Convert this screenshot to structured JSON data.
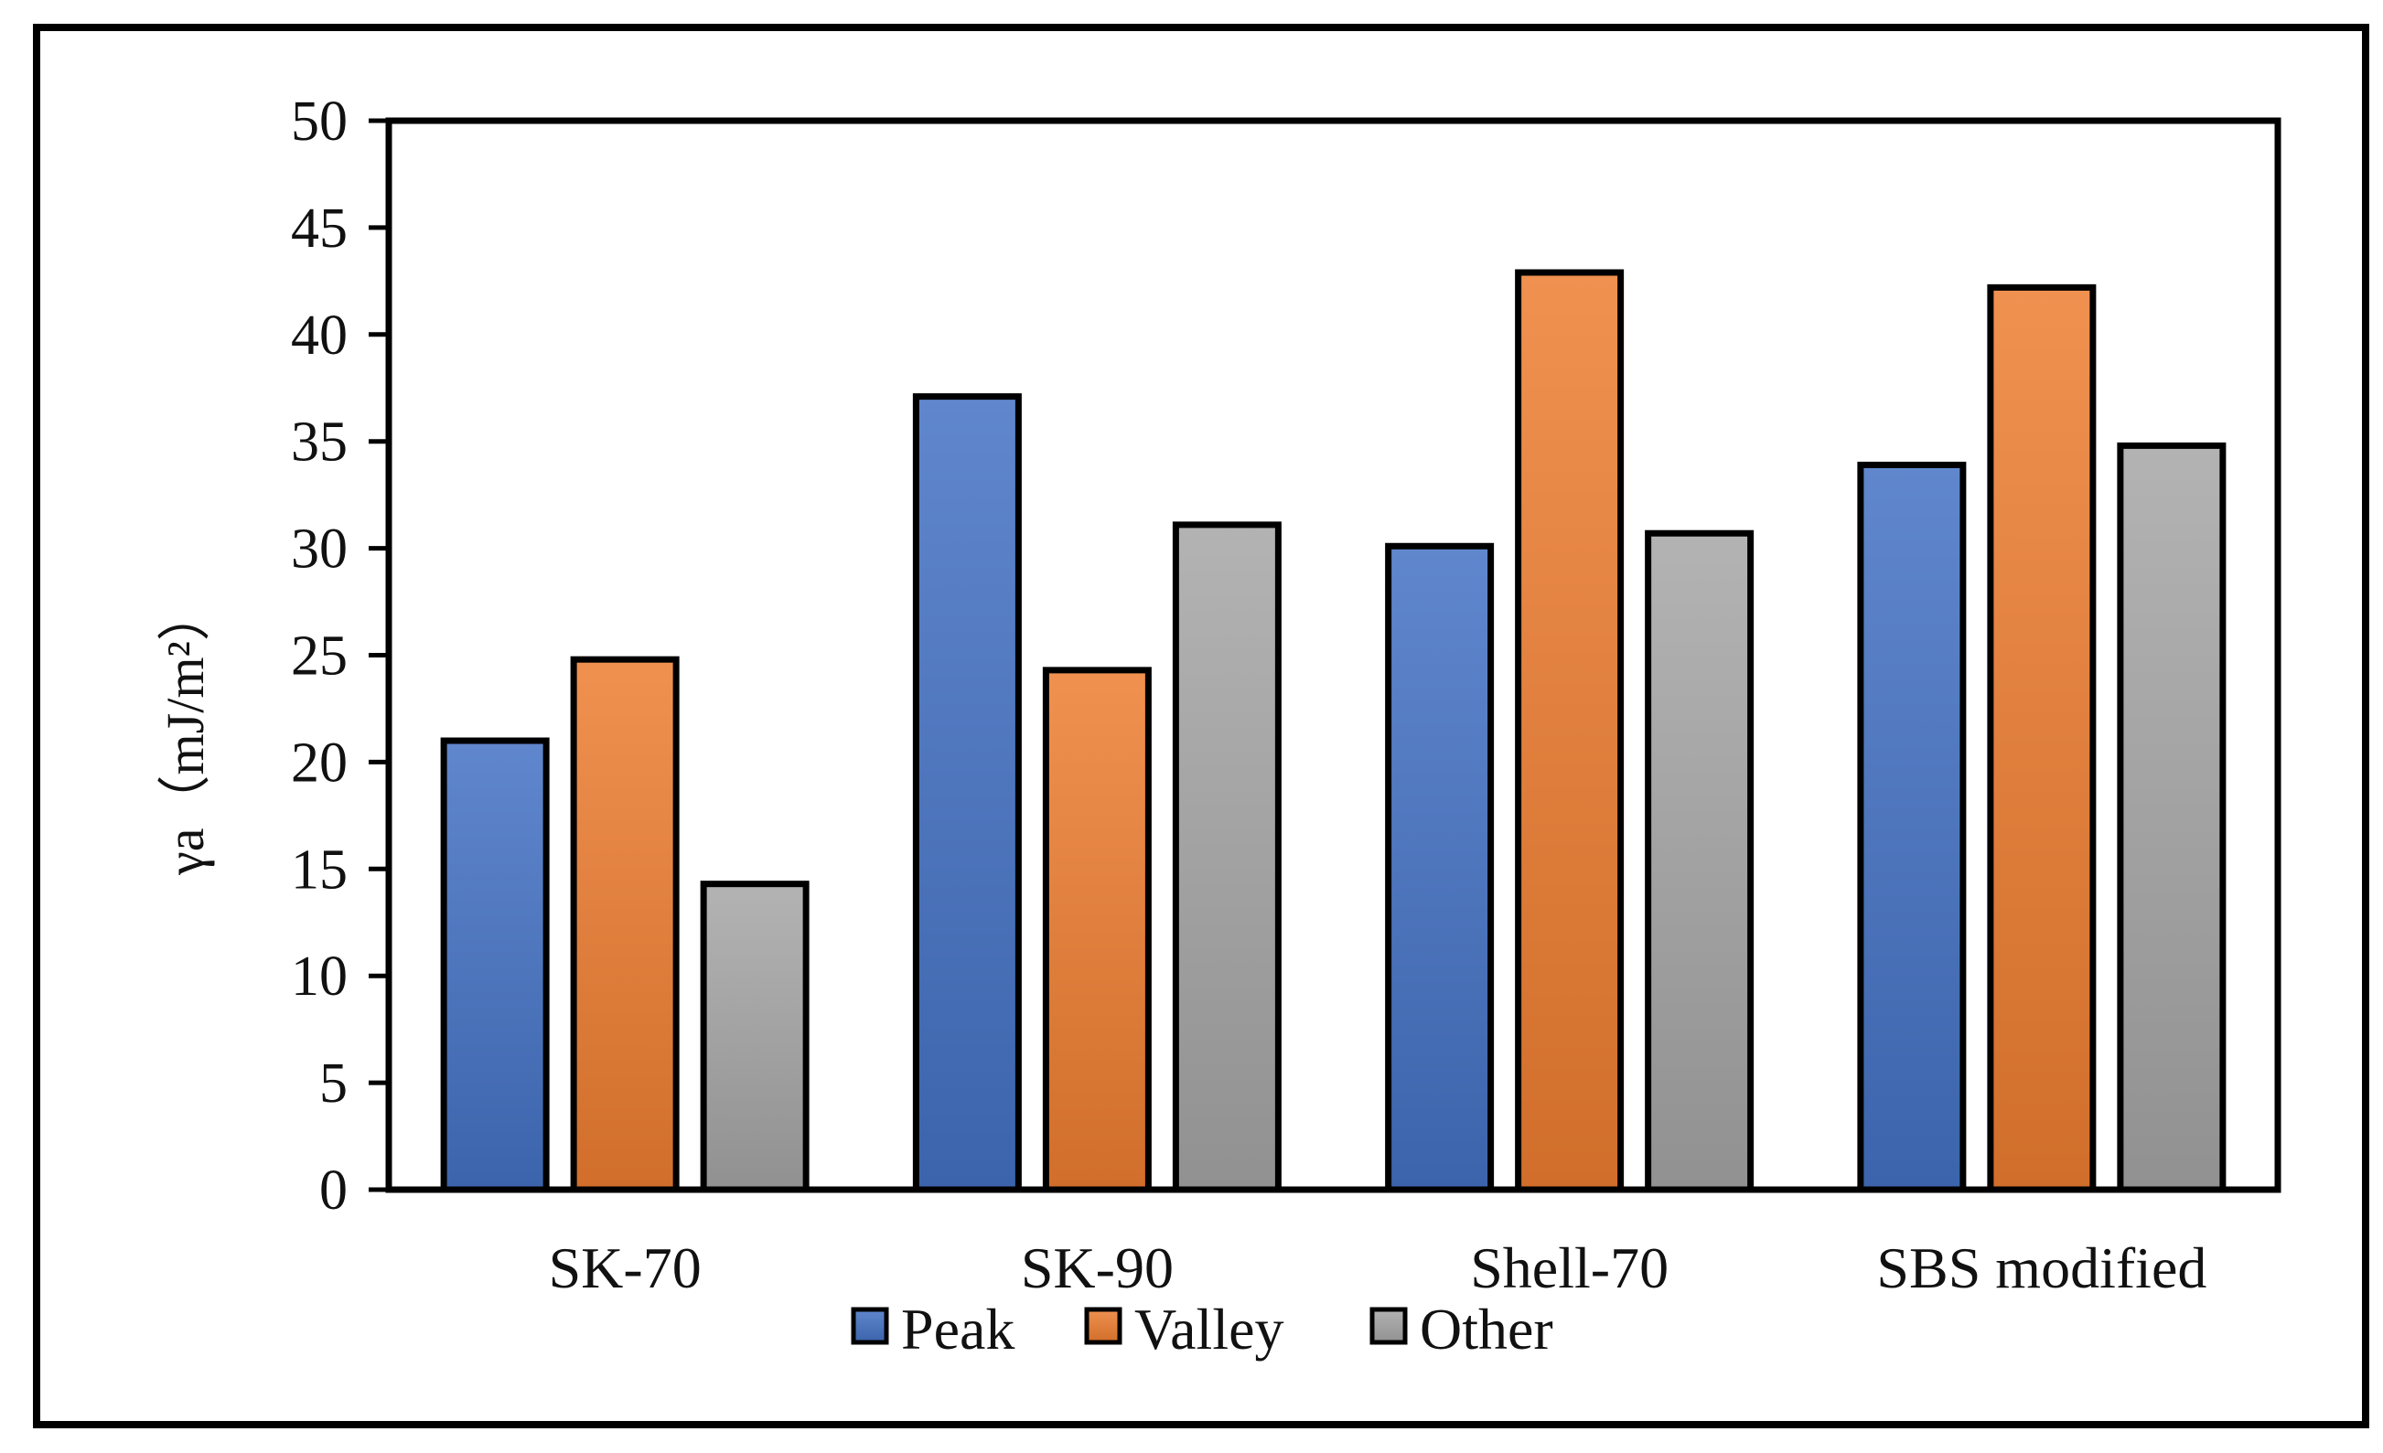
{
  "chart_data": {
    "type": "bar",
    "title": "",
    "xlabel": "",
    "ylabel": "γa（mJ/m²）",
    "ylim": [
      0,
      50
    ],
    "yticks": [
      0,
      5,
      10,
      15,
      20,
      25,
      30,
      35,
      40,
      45,
      50
    ],
    "grid": false,
    "legend_position": "bottom",
    "categories": [
      "SK-70",
      "SK-90",
      "Shell-70",
      "SBS modified"
    ],
    "series": [
      {
        "name": "Peak",
        "color": "#4472C4",
        "values": [
          21.0,
          37.1,
          30.1,
          33.9
        ]
      },
      {
        "name": "Valley",
        "color": "#ED7D31",
        "values": [
          24.8,
          24.3,
          42.9,
          42.2
        ]
      },
      {
        "name": "Other",
        "color": "#A5A5A5",
        "values": [
          14.3,
          31.1,
          30.7,
          34.8
        ]
      }
    ]
  }
}
